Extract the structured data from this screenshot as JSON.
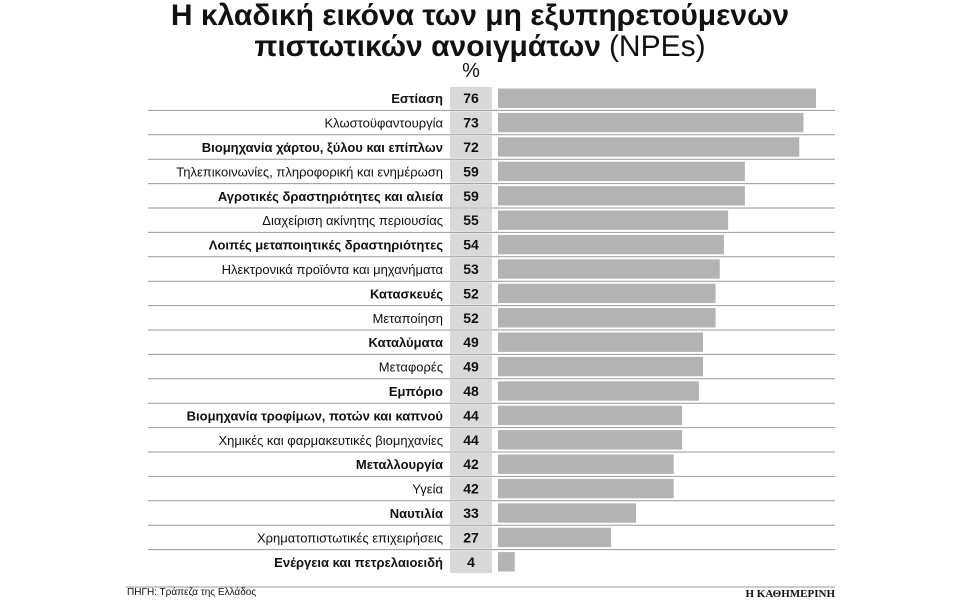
{
  "chart_data": {
    "type": "bar",
    "orientation": "horizontal",
    "title_line1": "Η κλαδική εικόνα των μη εξυπηρετούμενων",
    "title_line2_bold": "πιστωτικών ανοιγμάτων",
    "title_line2_normal": "(NPEs)",
    "unit": "%",
    "categories": [
      "Εστίαση",
      "Κλωστοϋφαντουργία",
      "Βιομηχανία χάρτου, ξύλου και επίπλων",
      "Τηλεπικοινωνίες, πληροφορική και ενημέρωση",
      "Αγροτικές δραστηριότητες και αλιεία",
      "Διαχείριση ακίνητης περιουσίας",
      "Λοιπές μεταποιητικές δραστηριότητες",
      "Ηλεκτρονικά προϊόντα και μηχανήματα",
      "Κατασκευές",
      "Μεταποίηση",
      "Καταλύματα",
      "Μεταφορές",
      "Εμπόριο",
      "Βιομηχανία τροφίμων, ποτών και καπνού",
      "Χημικές και φαρμακευτικές βιομηχανίες",
      "Μεταλλουργία",
      "Υγεία",
      "Ναυτιλία",
      "Χρηματοπιστωτικές επιχειρήσεις",
      "Ενέργεια και πετρελαιοειδή"
    ],
    "bold_labels": [
      true,
      false,
      true,
      false,
      true,
      false,
      true,
      false,
      true,
      false,
      true,
      false,
      true,
      true,
      false,
      true,
      false,
      true,
      false,
      true
    ],
    "values": [
      76,
      73,
      72,
      59,
      59,
      55,
      54,
      53,
      52,
      52,
      49,
      49,
      48,
      44,
      44,
      42,
      42,
      33,
      27,
      4
    ],
    "source": "ΠΗΓΗ: Τράπεζα της Ελλάδος",
    "publisher": "Η ΚΑΘΗΜΕΡΙΝΗ",
    "colors": {
      "bar": "#b3b3b3",
      "value_cell": "#d9d9d9",
      "row_rule": "#9a9a9a",
      "text": "#111111"
    }
  }
}
